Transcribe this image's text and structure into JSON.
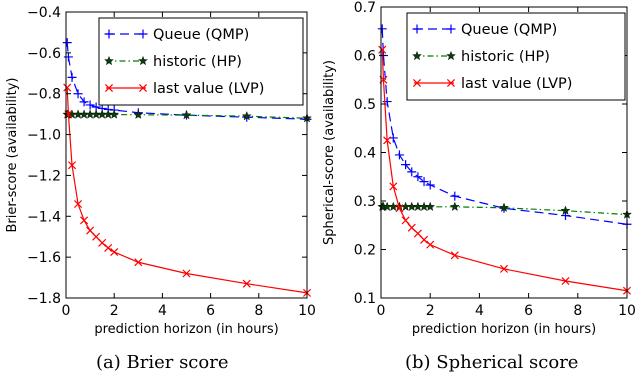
{
  "chart_data": [
    {
      "type": "line",
      "caption": "(a) Brier score",
      "xlabel": "prediction horizon (in hours)",
      "ylabel": "Brier-score (availability)",
      "xlim": [
        0,
        10
      ],
      "ylim": [
        -1.8,
        -0.4
      ],
      "xticks": [
        0,
        2,
        4,
        6,
        8,
        10
      ],
      "yticks": [
        -1.8,
        -1.6,
        -1.4,
        -1.2,
        -1.0,
        -0.8,
        -0.6,
        -0.4
      ],
      "ytick_labels": [
        "−1.8",
        "−1.6",
        "−1.4",
        "−1.2",
        "−1.0",
        "−0.8",
        "−0.6",
        "−0.4"
      ],
      "grid": false,
      "legend_position": "top-right",
      "series": [
        {
          "name": "Queue (QMP)",
          "color": "#0000ff",
          "linestyle": "dashed",
          "marker": "plus",
          "x": [
            0.05,
            0.1,
            0.25,
            0.5,
            0.75,
            1.0,
            1.25,
            1.5,
            1.75,
            2.0,
            3.0,
            5.0,
            7.5,
            10.0
          ],
          "y": [
            -0.55,
            -0.62,
            -0.72,
            -0.8,
            -0.84,
            -0.855,
            -0.865,
            -0.872,
            -0.877,
            -0.88,
            -0.893,
            -0.905,
            -0.915,
            -0.925
          ]
        },
        {
          "name": "historic (HP)",
          "color": "#007f00",
          "linestyle": "dashdot",
          "marker": "star",
          "x": [
            0.05,
            0.1,
            0.25,
            0.5,
            0.75,
            1.0,
            1.25,
            1.5,
            1.75,
            2.0,
            3.0,
            5.0,
            7.5,
            10.0
          ],
          "y": [
            -0.902,
            -0.902,
            -0.902,
            -0.902,
            -0.902,
            -0.902,
            -0.902,
            -0.902,
            -0.902,
            -0.902,
            -0.903,
            -0.905,
            -0.91,
            -0.92
          ]
        },
        {
          "name": "last value (LVP)",
          "color": "#ff0000",
          "linestyle": "solid",
          "marker": "x",
          "x": [
            0.05,
            0.1,
            0.25,
            0.5,
            0.75,
            1.0,
            1.25,
            1.5,
            1.75,
            2.0,
            3.0,
            5.0,
            7.5,
            10.0
          ],
          "y": [
            -0.77,
            -0.9,
            -1.15,
            -1.34,
            -1.42,
            -1.47,
            -1.5,
            -1.53,
            -1.555,
            -1.575,
            -1.625,
            -1.68,
            -1.73,
            -1.775
          ]
        }
      ]
    },
    {
      "type": "line",
      "caption": "(b)  Spherical score",
      "xlabel": "prediction horizon (in hours)",
      "ylabel": "Spherical-score (availability)",
      "xlim": [
        0,
        10
      ],
      "ylim": [
        0.1,
        0.7
      ],
      "xticks": [
        0,
        2,
        4,
        6,
        8,
        10
      ],
      "yticks": [
        0.1,
        0.2,
        0.3,
        0.4,
        0.5,
        0.6,
        0.7
      ],
      "ytick_labels": [
        "0.1",
        "0.2",
        "0.3",
        "0.4",
        "0.5",
        "0.6",
        "0.7"
      ],
      "grid": false,
      "legend_position": "top-right",
      "series": [
        {
          "name": "Queue (QMP)",
          "color": "#0000ff",
          "linestyle": "dashed",
          "marker": "plus",
          "x": [
            0.05,
            0.1,
            0.25,
            0.5,
            0.75,
            1.0,
            1.25,
            1.5,
            1.75,
            2.0,
            3.0,
            5.0,
            7.5,
            10.0
          ],
          "y": [
            0.655,
            0.6,
            0.505,
            0.43,
            0.395,
            0.375,
            0.36,
            0.35,
            0.34,
            0.333,
            0.31,
            0.285,
            0.27,
            0.252
          ]
        },
        {
          "name": "historic (HP)",
          "color": "#007f00",
          "linestyle": "dashdot",
          "marker": "star",
          "x": [
            0.05,
            0.1,
            0.25,
            0.5,
            0.75,
            1.0,
            1.25,
            1.5,
            1.75,
            2.0,
            3.0,
            5.0,
            7.5,
            10.0
          ],
          "y": [
            0.288,
            0.288,
            0.288,
            0.288,
            0.288,
            0.288,
            0.288,
            0.288,
            0.288,
            0.288,
            0.288,
            0.286,
            0.28,
            0.272
          ]
        },
        {
          "name": "last value (LVP)",
          "color": "#ff0000",
          "linestyle": "solid",
          "marker": "x",
          "x": [
            0.05,
            0.1,
            0.25,
            0.5,
            0.75,
            1.0,
            1.25,
            1.5,
            1.75,
            2.0,
            3.0,
            5.0,
            7.5,
            10.0
          ],
          "y": [
            0.612,
            0.55,
            0.425,
            0.33,
            0.285,
            0.26,
            0.245,
            0.233,
            0.22,
            0.21,
            0.188,
            0.16,
            0.135,
            0.115
          ]
        }
      ]
    }
  ]
}
